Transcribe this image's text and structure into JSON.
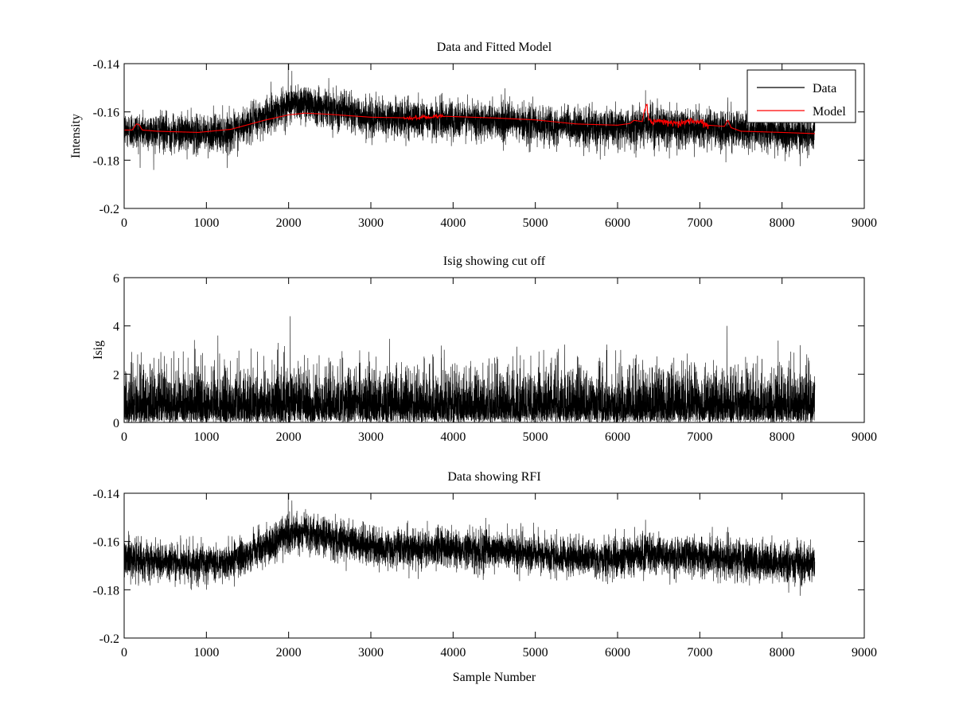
{
  "chart_data": [
    {
      "id": "data-model",
      "type": "line",
      "title": "Data and Fitted Model",
      "xlabel": "",
      "ylabel": "Intensity",
      "xlim": [
        0,
        9000
      ],
      "ylim": [
        -0.2,
        -0.14
      ],
      "xticks": [
        0,
        1000,
        2000,
        3000,
        4000,
        5000,
        6000,
        7000,
        8000,
        9000
      ],
      "yticks": [
        -0.2,
        -0.18,
        -0.16,
        -0.14
      ],
      "ytick_labels": [
        "-0.2",
        "-0.18",
        "-0.16",
        "-0.14"
      ],
      "legend": {
        "placement": "top-right",
        "entries": [
          {
            "name": "Data",
            "color": "#000000"
          },
          {
            "name": "Model",
            "color": "#ff0000"
          }
        ]
      },
      "series": [
        {
          "name": "Data",
          "color": "#000000",
          "n_samples": 8400,
          "baseline": {
            "x": [
              0,
              900,
              1300,
              2000,
              2200,
              2600,
              3000,
              4500,
              5200,
              6000,
              6300,
              7000,
              8400
            ],
            "y": [
              -0.1675,
              -0.169,
              -0.1685,
              -0.157,
              -0.156,
              -0.159,
              -0.1625,
              -0.1635,
              -0.166,
              -0.167,
              -0.1655,
              -0.1665,
              -0.1695
            ]
          },
          "noise_std": 0.0038,
          "spikes": [
            {
              "x": 1995,
              "y": -0.139
            },
            {
              "x": 2040,
              "y": -0.143
            },
            {
              "x": 6340,
              "y": -0.151
            },
            {
              "x": 8220,
              "y": -0.1825
            },
            {
              "x": 7340,
              "y": -0.154
            }
          ]
        },
        {
          "name": "Model",
          "color": "#ff0000",
          "x": [
            0,
            100,
            150,
            180,
            220,
            400,
            900,
            1300,
            1700,
            2000,
            2200,
            2500,
            3000,
            3500,
            3800,
            4500,
            5000,
            5500,
            6000,
            6150,
            6200,
            6300,
            6350,
            6380,
            6420,
            6550,
            6700,
            6900,
            7000,
            7100,
            7300,
            7340,
            7380,
            7500,
            8000,
            8400
          ],
          "y": [
            -0.1675,
            -0.1675,
            -0.165,
            -0.1652,
            -0.1675,
            -0.168,
            -0.1685,
            -0.1672,
            -0.1635,
            -0.1612,
            -0.1605,
            -0.161,
            -0.1622,
            -0.1625,
            -0.1617,
            -0.1625,
            -0.1633,
            -0.165,
            -0.1655,
            -0.1648,
            -0.1635,
            -0.164,
            -0.156,
            -0.163,
            -0.1645,
            -0.1635,
            -0.165,
            -0.1638,
            -0.164,
            -0.1655,
            -0.166,
            -0.1633,
            -0.1665,
            -0.168,
            -0.1685,
            -0.169
          ]
        }
      ]
    },
    {
      "id": "isig",
      "type": "line",
      "title": "Isig showing cut off",
      "xlabel": "",
      "ylabel": "Isig",
      "xlim": [
        0,
        9000
      ],
      "ylim": [
        0,
        6
      ],
      "xticks": [
        0,
        1000,
        2000,
        3000,
        4000,
        5000,
        6000,
        7000,
        8000,
        9000
      ],
      "yticks": [
        0,
        2,
        4,
        6
      ],
      "ytick_labels": [
        "0",
        "2",
        "4",
        "6"
      ],
      "series": [
        {
          "name": "",
          "color": "#000000",
          "n_samples": 8400,
          "distribution": "abs-gaussian",
          "scale": 1.0,
          "spikes": [
            {
              "x": 2020,
              "y": 4.4
            },
            {
              "x": 7330,
              "y": 4.0
            },
            {
              "x": 8220,
              "y": 3.2
            },
            {
              "x": 1140,
              "y": 3.6
            }
          ]
        }
      ]
    },
    {
      "id": "rfi",
      "type": "line",
      "title": "Data showing RFI",
      "xlabel": "Sample Number",
      "ylabel": "",
      "xlim": [
        0,
        9000
      ],
      "ylim": [
        -0.2,
        -0.14
      ],
      "xticks": [
        0,
        1000,
        2000,
        3000,
        4000,
        5000,
        6000,
        7000,
        8000,
        9000
      ],
      "yticks": [
        -0.2,
        -0.18,
        -0.16,
        -0.14
      ],
      "ytick_labels": [
        "-0.2",
        "-0.18",
        "-0.16",
        "-0.14"
      ],
      "series": [
        {
          "name": "",
          "color": "#000000",
          "n_samples": 8400,
          "baseline": {
            "x": [
              0,
              900,
              1300,
              2000,
              2200,
              2600,
              3000,
              4500,
              5200,
              6000,
              6300,
              7000,
              8400
            ],
            "y": [
              -0.1675,
              -0.169,
              -0.1685,
              -0.157,
              -0.156,
              -0.159,
              -0.1625,
              -0.1635,
              -0.166,
              -0.167,
              -0.1655,
              -0.1665,
              -0.1695
            ]
          },
          "noise_std": 0.0038,
          "spikes": [
            {
              "x": 1995,
              "y": -0.139
            },
            {
              "x": 2040,
              "y": -0.143
            },
            {
              "x": 6340,
              "y": -0.151
            },
            {
              "x": 8220,
              "y": -0.1825
            },
            {
              "x": 7340,
              "y": -0.154
            }
          ]
        }
      ]
    }
  ]
}
